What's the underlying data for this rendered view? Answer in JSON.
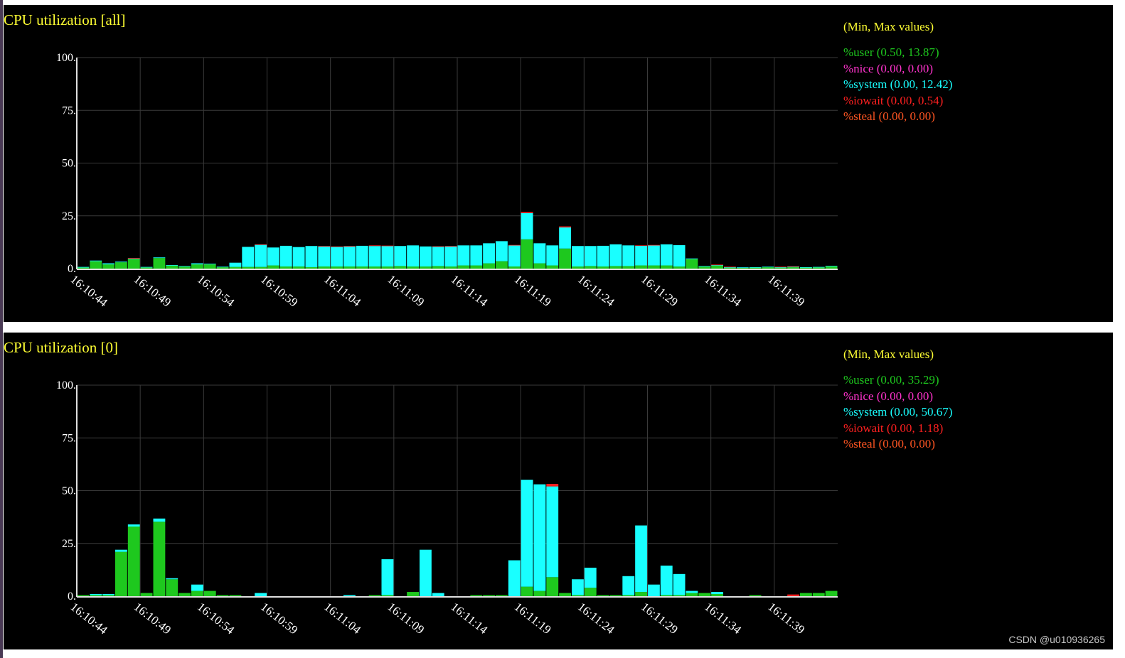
{
  "colors": {
    "background": "#000000",
    "grid": "#3a3a3a",
    "axis": "#e0e0e0",
    "text": "#ffffff",
    "title": "#ffff33",
    "user": "#1ec81e",
    "nice": "#ff33cc",
    "system": "#19ffff",
    "iowait": "#ff2020",
    "steal": "#ff5522"
  },
  "watermark": "CSDN @u010936265",
  "chart_data": [
    {
      "type": "bar",
      "stacked": true,
      "title": "CPU utilization [all]",
      "legend_heading": "(Min, Max values)",
      "legend_placement": "right",
      "grid": true,
      "ylim": [
        0,
        100
      ],
      "yticks": [
        "0",
        "25",
        "50",
        "75",
        "100"
      ],
      "xticks": [
        "16:10:44",
        "16:10:49",
        "16:10:54",
        "16:10:59",
        "16:11:04",
        "16:11:09",
        "16:11:14",
        "16:11:19",
        "16:11:24",
        "16:11:29",
        "16:11:34",
        "16:11:39"
      ],
      "legend": [
        {
          "key": "user",
          "label": "%user (0.50, 13.87)"
        },
        {
          "key": "nice",
          "label": "%nice (0.00, 0.00)"
        },
        {
          "key": "system",
          "label": "%system (0.00, 12.42)"
        },
        {
          "key": "iowait",
          "label": "%iowait (0.00, 0.54)"
        },
        {
          "key": "steal",
          "label": "%steal (0.00, 0.00)"
        }
      ],
      "series": [
        {
          "key": "user",
          "values": [
            0.5,
            3.5,
            2,
            3,
            4.5,
            0.6,
            5,
            1.5,
            1,
            2,
            2,
            0.7,
            0.8,
            0.8,
            0.8,
            1.5,
            1,
            1,
            0.7,
            1,
            1,
            1,
            1,
            1,
            1,
            1.2,
            1,
            1,
            1.2,
            1,
            1.5,
            1.5,
            2.5,
            3.5,
            1,
            13.87,
            2.5,
            1.5,
            9.5,
            1,
            1.2,
            1,
            1.2,
            1.2,
            1.5,
            1.5,
            1.5,
            1,
            4.5,
            1,
            1.5,
            0.6,
            0.5,
            0.6,
            0.8,
            0.6,
            0.8,
            0.6,
            0.7,
            1.2
          ]
        },
        {
          "key": "nice",
          "values": [
            0,
            0,
            0,
            0,
            0,
            0,
            0,
            0,
            0,
            0,
            0,
            0,
            0,
            0,
            0,
            0,
            0,
            0,
            0,
            0,
            0,
            0,
            0,
            0,
            0,
            0,
            0,
            0,
            0,
            0,
            0,
            0,
            0,
            0,
            0,
            0,
            0,
            0,
            0,
            0,
            0,
            0,
            0,
            0,
            0,
            0,
            0,
            0,
            0,
            0,
            0,
            0,
            0,
            0,
            0,
            0,
            0,
            0,
            0,
            0
          ]
        },
        {
          "key": "system",
          "values": [
            0.3,
            0.3,
            0.5,
            0.3,
            0.3,
            0.2,
            0.3,
            0.2,
            0.2,
            0.5,
            0.3,
            0.2,
            2,
            9.5,
            10.5,
            8.5,
            9.8,
            9.2,
            10,
            9.5,
            9.3,
            9.5,
            9.8,
            9.7,
            9.7,
            9.5,
            10,
            9.5,
            9.2,
            9.5,
            9.5,
            9.5,
            9.5,
            9.5,
            10,
            12.42,
            9.5,
            9.5,
            10,
            9.7,
            9.5,
            9.8,
            10.3,
            9.8,
            9.3,
            9.5,
            10,
            10.1,
            0.3,
            0.2,
            0.2,
            0.1,
            0.1,
            0.1,
            0.1,
            0.1,
            0.1,
            0.1,
            0.1,
            0.1
          ]
        },
        {
          "key": "iowait",
          "values": [
            0,
            0,
            0,
            0,
            0.2,
            0,
            0,
            0,
            0,
            0,
            0,
            0,
            0,
            0,
            0.2,
            0,
            0,
            0,
            0,
            0.2,
            0.2,
            0.2,
            0,
            0.3,
            0.2,
            0,
            0,
            0,
            0.2,
            0.2,
            0,
            0,
            0,
            0,
            0.2,
            0.54,
            0,
            0,
            0.5,
            0,
            0,
            0,
            0,
            0,
            0.2,
            0.2,
            0,
            0,
            0,
            0,
            0.2,
            0.2,
            0,
            0,
            0,
            0.2,
            0.2,
            0,
            0,
            0
          ]
        },
        {
          "key": "steal",
          "values": [
            0,
            0,
            0,
            0,
            0,
            0,
            0,
            0,
            0,
            0,
            0,
            0,
            0,
            0,
            0,
            0,
            0,
            0,
            0,
            0,
            0,
            0,
            0,
            0,
            0,
            0,
            0,
            0,
            0,
            0,
            0,
            0,
            0,
            0,
            0,
            0,
            0,
            0,
            0,
            0,
            0,
            0,
            0,
            0,
            0,
            0,
            0,
            0,
            0,
            0,
            0,
            0,
            0,
            0,
            0,
            0,
            0,
            0,
            0,
            0
          ]
        }
      ]
    },
    {
      "type": "bar",
      "stacked": true,
      "title": "CPU utilization [0]",
      "legend_heading": "(Min, Max values)",
      "legend_placement": "right",
      "grid": true,
      "ylim": [
        0,
        100
      ],
      "yticks": [
        "0",
        "25",
        "50",
        "75",
        "100"
      ],
      "xticks": [
        "16:10:44",
        "16:10:49",
        "16:10:54",
        "16:10:59",
        "16:11:04",
        "16:11:09",
        "16:11:14",
        "16:11:19",
        "16:11:24",
        "16:11:29",
        "16:11:34",
        "16:11:39"
      ],
      "legend": [
        {
          "key": "user",
          "label": "%user (0.00, 35.29)"
        },
        {
          "key": "nice",
          "label": "%nice (0.00, 0.00)"
        },
        {
          "key": "system",
          "label": "%system (0.00, 50.67)"
        },
        {
          "key": "iowait",
          "label": "%iowait (0.00, 1.18)"
        },
        {
          "key": "steal",
          "label": "%steal (0.00, 0.00)"
        }
      ],
      "series": [
        {
          "key": "user",
          "values": [
            0.5,
            0.5,
            0.5,
            21,
            33,
            1.5,
            35.29,
            8,
            1.5,
            2.5,
            2.5,
            0.5,
            0.5,
            0,
            0,
            0,
            0,
            0,
            0,
            0,
            0,
            0,
            0,
            0.5,
            0.5,
            0,
            2,
            0,
            0,
            0,
            0,
            0.5,
            0.5,
            0.5,
            0,
            4.5,
            2.5,
            9,
            1.5,
            0.5,
            4,
            0.5,
            0.5,
            0.5,
            2,
            0,
            0.5,
            0.5,
            1.5,
            1.5,
            1,
            0,
            0,
            0.5,
            0,
            0,
            0,
            1.5,
            1.5,
            2.5
          ]
        },
        {
          "key": "nice",
          "values": [
            0,
            0,
            0,
            0,
            0,
            0,
            0,
            0,
            0,
            0,
            0,
            0,
            0,
            0,
            0,
            0,
            0,
            0,
            0,
            0,
            0,
            0,
            0,
            0,
            0,
            0,
            0,
            0,
            0,
            0,
            0,
            0,
            0,
            0,
            0,
            0,
            0,
            0,
            0,
            0,
            0,
            0,
            0,
            0,
            0,
            0,
            0,
            0,
            0,
            0,
            0,
            0,
            0,
            0,
            0,
            0,
            0,
            0,
            0,
            0
          ]
        },
        {
          "key": "system",
          "values": [
            0,
            0.5,
            0.5,
            1,
            1,
            0,
            1.5,
            0.5,
            0,
            3,
            0,
            0,
            0,
            0,
            1.5,
            0,
            0,
            0,
            0,
            0,
            0,
            0.5,
            0,
            0,
            17,
            0,
            0,
            22,
            1.5,
            0,
            0,
            0,
            0,
            0,
            17,
            50.67,
            50.5,
            43,
            0,
            7.5,
            9.5,
            0,
            0,
            9,
            31.5,
            5.5,
            14,
            10,
            1,
            0,
            1,
            0,
            0,
            0,
            0,
            0,
            0,
            0,
            0,
            0
          ]
        },
        {
          "key": "iowait",
          "values": [
            0,
            0,
            0,
            0,
            0,
            0,
            0,
            0,
            0,
            0,
            0,
            0,
            0,
            0,
            0,
            0,
            0,
            0,
            0,
            0,
            0,
            0,
            0,
            0,
            0,
            0,
            0,
            0,
            0,
            0,
            0,
            0,
            0,
            0,
            0,
            0,
            0,
            1.18,
            0,
            0,
            0,
            0,
            0,
            0,
            0,
            0,
            0,
            0,
            0,
            0,
            0,
            0,
            0,
            0,
            0,
            0,
            0.8,
            0,
            0,
            0
          ]
        },
        {
          "key": "steal",
          "values": [
            0,
            0,
            0,
            0,
            0,
            0,
            0,
            0,
            0,
            0,
            0,
            0,
            0,
            0,
            0,
            0,
            0,
            0,
            0,
            0,
            0,
            0,
            0,
            0,
            0,
            0,
            0,
            0,
            0,
            0,
            0,
            0,
            0,
            0,
            0,
            0,
            0,
            0,
            0,
            0,
            0,
            0,
            0,
            0,
            0,
            0,
            0,
            0,
            0,
            0,
            0,
            0,
            0,
            0,
            0,
            0,
            0,
            0,
            0,
            0
          ]
        }
      ]
    }
  ]
}
